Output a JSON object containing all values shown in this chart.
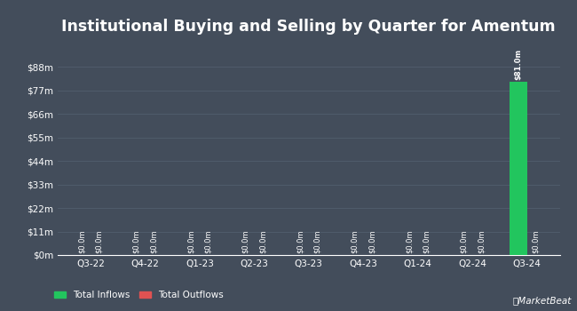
{
  "title": "Institutional Buying and Selling by Quarter for Amentum",
  "quarters": [
    "Q3-22",
    "Q4-22",
    "Q1-23",
    "Q2-23",
    "Q3-23",
    "Q4-23",
    "Q1-24",
    "Q2-24",
    "Q3-24"
  ],
  "inflows": [
    0.0,
    0.0,
    0.0,
    0.0,
    0.0,
    0.0,
    0.0,
    0.0,
    81.0
  ],
  "outflows": [
    0.0,
    0.0,
    0.0,
    0.0,
    0.0,
    0.0,
    0.0,
    0.0,
    0.0
  ],
  "inflow_color": "#22c55e",
  "outflow_color": "#e05252",
  "background_color": "#434d5b",
  "plot_background_color": "#434d5b",
  "grid_color": "#525e6e",
  "text_color": "#ffffff",
  "title_fontsize": 12.5,
  "tick_fontsize": 7.5,
  "bar_label_fontsize": 6,
  "ylim": [
    0,
    99
  ],
  "yticks": [
    0,
    11,
    22,
    33,
    44,
    55,
    66,
    77,
    88
  ],
  "ytick_labels": [
    "$0m",
    "$11m",
    "$22m",
    "$33m",
    "$44m",
    "$55m",
    "$66m",
    "$77m",
    "$88m"
  ],
  "legend_inflow": "Total Inflows",
  "legend_outflow": "Total Outflows",
  "bar_width": 0.32
}
